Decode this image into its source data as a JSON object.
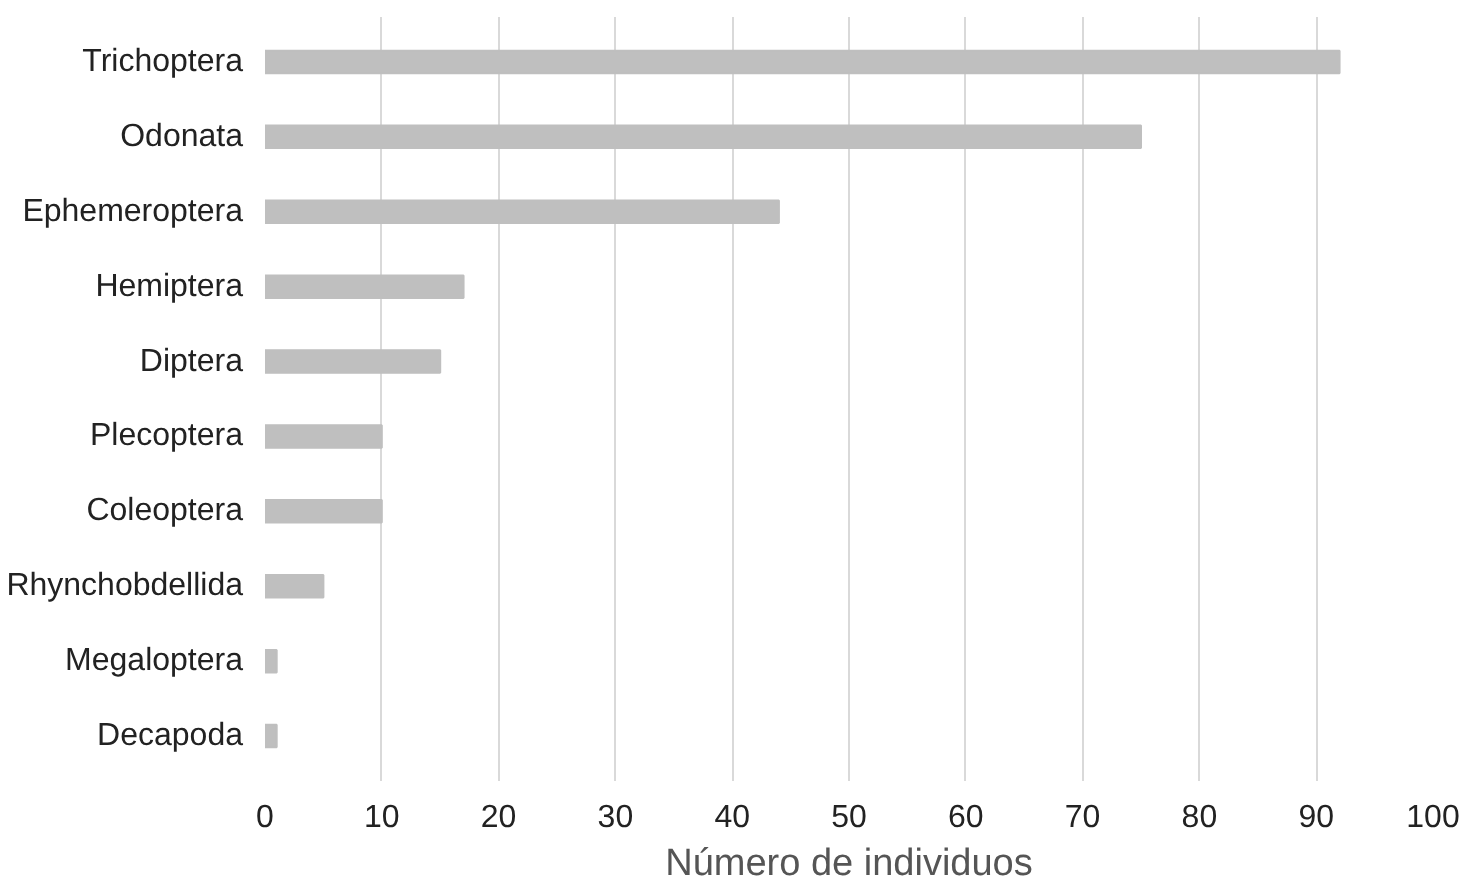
{
  "chart_data": {
    "type": "bar",
    "orientation": "horizontal",
    "xlabel": "Número de individuos",
    "categories": [
      "Trichoptera",
      "Odonata",
      "Ephemeroptera",
      "Hemiptera",
      "Diptera",
      "Plecoptera",
      "Coleoptera",
      "Rhynchobdellida",
      "Megaloptera",
      "Decapoda"
    ],
    "values": [
      92,
      75,
      44,
      17,
      15,
      10,
      10,
      5,
      1,
      1
    ],
    "color": "#bfbfbf",
    "xlim": [
      0,
      100
    ],
    "xticks": [
      0,
      10,
      20,
      30,
      40,
      50,
      60,
      70,
      80,
      90,
      100
    ],
    "grid": "x"
  }
}
